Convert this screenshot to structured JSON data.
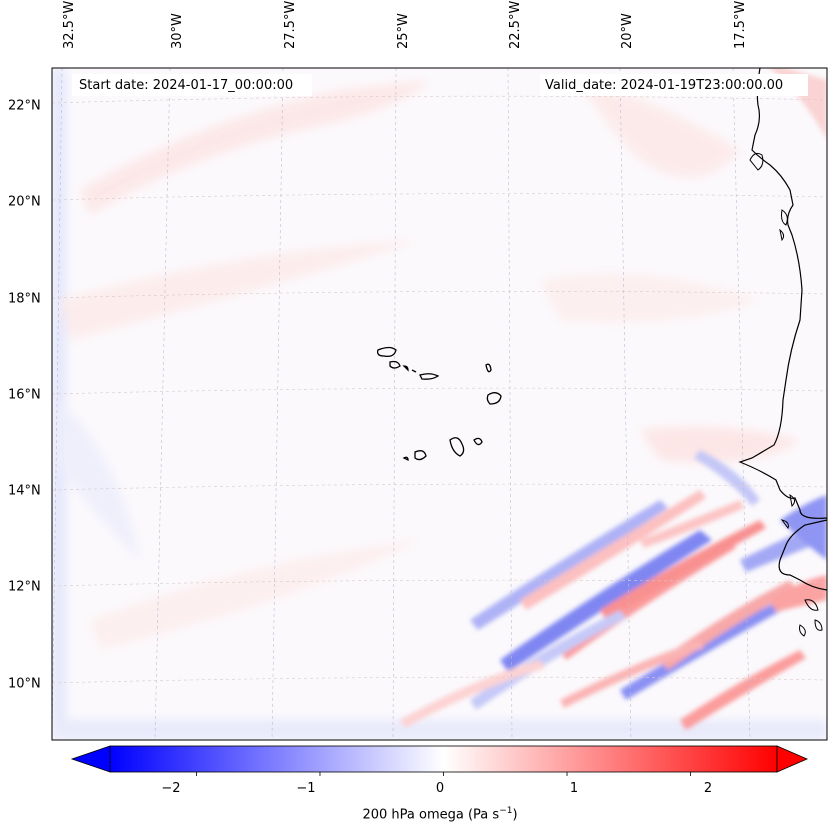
{
  "map": {
    "start_date": "Start date: 2024-01-17_00:00:00",
    "valid_date": "Valid_date: 2024-01-19T23:00:00.00",
    "lon_labels": [
      "32.5°W",
      "30°W",
      "27.5°W",
      "25°W",
      "22.5°W",
      "20°W",
      "17.5°W"
    ],
    "lat_labels": [
      "22°N",
      "20°N",
      "18°N",
      "16°N",
      "14°N",
      "12°N",
      "10°N"
    ],
    "field": "200 hPa omega",
    "unit": "Pa s",
    "unit_exponent": "−1",
    "colormap": {
      "low": "#0000ff",
      "mid": "#ffffff",
      "high": "#ff0000"
    }
  },
  "colorbar": {
    "ticks": [
      "−2",
      "−1",
      "0",
      "1",
      "2"
    ],
    "range": [
      -2.7,
      2.7
    ],
    "tick_values": [
      -2,
      -1,
      0,
      1,
      2
    ]
  }
}
